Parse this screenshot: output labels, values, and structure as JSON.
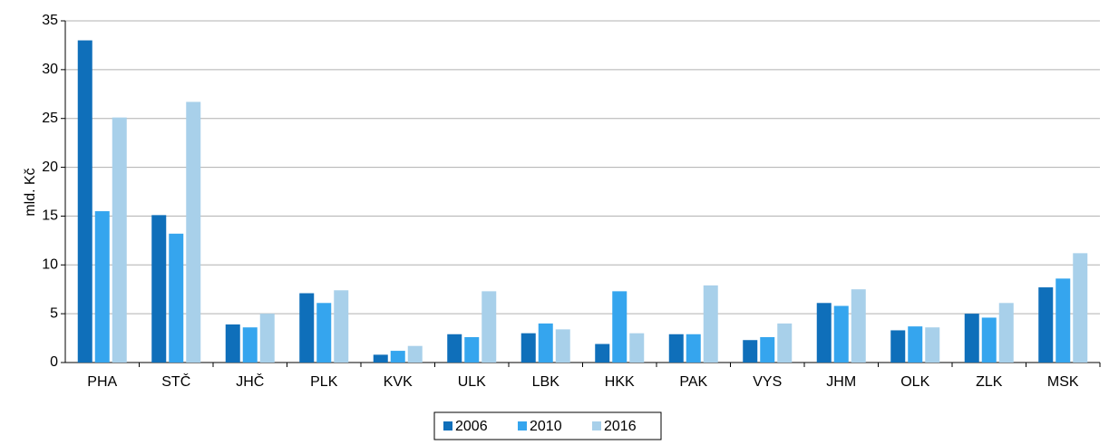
{
  "chart_data": {
    "type": "bar",
    "y_label": "mld. Kč",
    "categories": [
      "PHA",
      "STČ",
      "JHČ",
      "PLK",
      "KVK",
      "ULK",
      "LBK",
      "HKK",
      "PAK",
      "VYS",
      "JHM",
      "OLK",
      "ZLK",
      "MSK"
    ],
    "series": [
      {
        "name": "2006",
        "color": "#0f6fba",
        "values": [
          33.0,
          15.1,
          3.9,
          7.1,
          0.8,
          2.9,
          3.0,
          1.9,
          2.9,
          2.3,
          6.1,
          3.3,
          5.0,
          7.7
        ]
      },
      {
        "name": "2010",
        "color": "#35a5ee",
        "values": [
          15.5,
          13.2,
          3.6,
          6.1,
          1.2,
          2.6,
          4.0,
          7.3,
          2.9,
          2.6,
          5.8,
          3.7,
          4.6,
          8.6
        ]
      },
      {
        "name": "2016",
        "color": "#a8d0ea",
        "values": [
          25.1,
          26.7,
          5.0,
          7.4,
          1.7,
          7.3,
          3.4,
          3.0,
          7.9,
          4.0,
          7.5,
          3.6,
          6.1,
          11.2
        ]
      }
    ],
    "ylim": [
      0,
      35
    ],
    "yticks": [
      0,
      5,
      10,
      15,
      20,
      25,
      30,
      35
    ],
    "grid": true,
    "legend": "bottom"
  }
}
